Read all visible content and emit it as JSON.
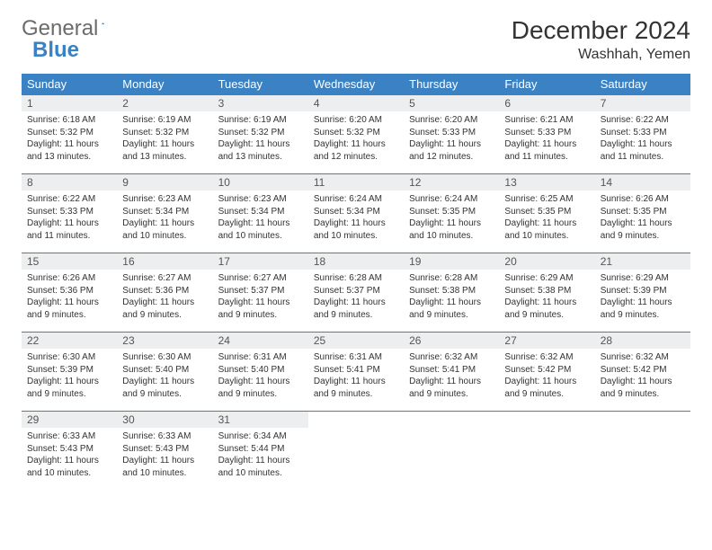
{
  "logo": {
    "part1": "General",
    "part2": "Blue"
  },
  "title": "December 2024",
  "location": "Washhah, Yemen",
  "weekdays": [
    "Sunday",
    "Monday",
    "Tuesday",
    "Wednesday",
    "Thursday",
    "Friday",
    "Saturday"
  ],
  "colors": {
    "header_bg": "#3b82c4",
    "header_text": "#ffffff",
    "daynum_bg": "#eceeef",
    "border": "#3b82c4",
    "logo_gray": "#6b6b6b",
    "logo_blue": "#3b82c4"
  },
  "days": [
    {
      "n": 1,
      "sr": "6:18 AM",
      "ss": "5:32 PM",
      "dl": "11 hours and 13 minutes."
    },
    {
      "n": 2,
      "sr": "6:19 AM",
      "ss": "5:32 PM",
      "dl": "11 hours and 13 minutes."
    },
    {
      "n": 3,
      "sr": "6:19 AM",
      "ss": "5:32 PM",
      "dl": "11 hours and 13 minutes."
    },
    {
      "n": 4,
      "sr": "6:20 AM",
      "ss": "5:32 PM",
      "dl": "11 hours and 12 minutes."
    },
    {
      "n": 5,
      "sr": "6:20 AM",
      "ss": "5:33 PM",
      "dl": "11 hours and 12 minutes."
    },
    {
      "n": 6,
      "sr": "6:21 AM",
      "ss": "5:33 PM",
      "dl": "11 hours and 11 minutes."
    },
    {
      "n": 7,
      "sr": "6:22 AM",
      "ss": "5:33 PM",
      "dl": "11 hours and 11 minutes."
    },
    {
      "n": 8,
      "sr": "6:22 AM",
      "ss": "5:33 PM",
      "dl": "11 hours and 11 minutes."
    },
    {
      "n": 9,
      "sr": "6:23 AM",
      "ss": "5:34 PM",
      "dl": "11 hours and 10 minutes."
    },
    {
      "n": 10,
      "sr": "6:23 AM",
      "ss": "5:34 PM",
      "dl": "11 hours and 10 minutes."
    },
    {
      "n": 11,
      "sr": "6:24 AM",
      "ss": "5:34 PM",
      "dl": "11 hours and 10 minutes."
    },
    {
      "n": 12,
      "sr": "6:24 AM",
      "ss": "5:35 PM",
      "dl": "11 hours and 10 minutes."
    },
    {
      "n": 13,
      "sr": "6:25 AM",
      "ss": "5:35 PM",
      "dl": "11 hours and 10 minutes."
    },
    {
      "n": 14,
      "sr": "6:26 AM",
      "ss": "5:35 PM",
      "dl": "11 hours and 9 minutes."
    },
    {
      "n": 15,
      "sr": "6:26 AM",
      "ss": "5:36 PM",
      "dl": "11 hours and 9 minutes."
    },
    {
      "n": 16,
      "sr": "6:27 AM",
      "ss": "5:36 PM",
      "dl": "11 hours and 9 minutes."
    },
    {
      "n": 17,
      "sr": "6:27 AM",
      "ss": "5:37 PM",
      "dl": "11 hours and 9 minutes."
    },
    {
      "n": 18,
      "sr": "6:28 AM",
      "ss": "5:37 PM",
      "dl": "11 hours and 9 minutes."
    },
    {
      "n": 19,
      "sr": "6:28 AM",
      "ss": "5:38 PM",
      "dl": "11 hours and 9 minutes."
    },
    {
      "n": 20,
      "sr": "6:29 AM",
      "ss": "5:38 PM",
      "dl": "11 hours and 9 minutes."
    },
    {
      "n": 21,
      "sr": "6:29 AM",
      "ss": "5:39 PM",
      "dl": "11 hours and 9 minutes."
    },
    {
      "n": 22,
      "sr": "6:30 AM",
      "ss": "5:39 PM",
      "dl": "11 hours and 9 minutes."
    },
    {
      "n": 23,
      "sr": "6:30 AM",
      "ss": "5:40 PM",
      "dl": "11 hours and 9 minutes."
    },
    {
      "n": 24,
      "sr": "6:31 AM",
      "ss": "5:40 PM",
      "dl": "11 hours and 9 minutes."
    },
    {
      "n": 25,
      "sr": "6:31 AM",
      "ss": "5:41 PM",
      "dl": "11 hours and 9 minutes."
    },
    {
      "n": 26,
      "sr": "6:32 AM",
      "ss": "5:41 PM",
      "dl": "11 hours and 9 minutes."
    },
    {
      "n": 27,
      "sr": "6:32 AM",
      "ss": "5:42 PM",
      "dl": "11 hours and 9 minutes."
    },
    {
      "n": 28,
      "sr": "6:32 AM",
      "ss": "5:42 PM",
      "dl": "11 hours and 9 minutes."
    },
    {
      "n": 29,
      "sr": "6:33 AM",
      "ss": "5:43 PM",
      "dl": "11 hours and 10 minutes."
    },
    {
      "n": 30,
      "sr": "6:33 AM",
      "ss": "5:43 PM",
      "dl": "11 hours and 10 minutes."
    },
    {
      "n": 31,
      "sr": "6:34 AM",
      "ss": "5:44 PM",
      "dl": "11 hours and 10 minutes."
    }
  ],
  "labels": {
    "sunrise": "Sunrise:",
    "sunset": "Sunset:",
    "daylight": "Daylight:"
  }
}
